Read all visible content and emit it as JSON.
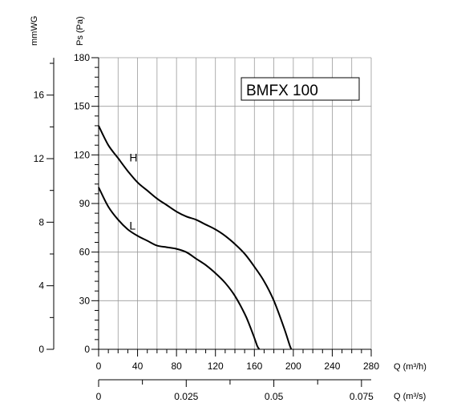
{
  "chart_data": {
    "type": "line",
    "title_box": "BMFX 100",
    "x_primary": {
      "label": "Q (m³/h)",
      "range": [
        0,
        280
      ],
      "ticks": [
        0,
        40,
        80,
        120,
        160,
        200,
        240,
        280
      ]
    },
    "x_secondary": {
      "label": "Q (m³/s)",
      "range": [
        0,
        0.0778
      ],
      "ticks": [
        "0",
        "0.025",
        "0.05",
        "0.075"
      ],
      "tick_values": [
        0,
        0.025,
        0.05,
        0.075
      ]
    },
    "y_primary": {
      "label": "Ps (Pa)",
      "range": [
        0,
        180
      ],
      "ticks": [
        0,
        30,
        60,
        90,
        120,
        150,
        180
      ]
    },
    "y_secondary": {
      "label": "mmWG",
      "ticks": [
        0,
        4,
        8,
        12,
        16
      ]
    },
    "grid": true,
    "series": [
      {
        "name": "H",
        "x": [
          0,
          10,
          20,
          30,
          40,
          50,
          60,
          70,
          80,
          90,
          100,
          110,
          120,
          130,
          140,
          150,
          160,
          170,
          180,
          190,
          196,
          198
        ],
        "y": [
          138,
          126,
          118,
          110,
          103,
          98,
          93,
          89,
          85,
          82,
          80,
          77,
          74,
          70,
          65,
          59,
          51,
          42,
          30,
          14,
          3,
          0
        ]
      },
      {
        "name": "L",
        "x": [
          0,
          10,
          20,
          30,
          40,
          50,
          60,
          70,
          80,
          90,
          100,
          110,
          120,
          130,
          140,
          150,
          155,
          160,
          163,
          165
        ],
        "y": [
          100,
          88,
          80,
          74,
          70,
          67,
          64,
          63,
          62,
          60,
          56,
          52,
          47,
          41,
          33,
          22,
          15,
          7,
          2,
          0
        ]
      }
    ]
  }
}
